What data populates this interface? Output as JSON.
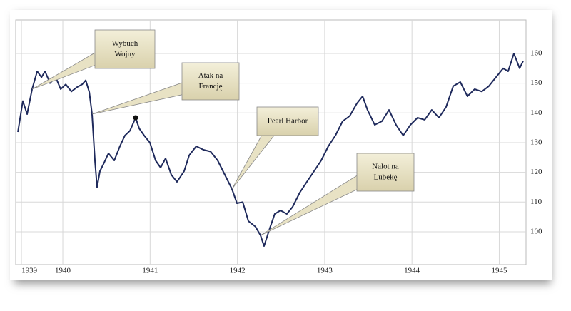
{
  "chart_data": {
    "type": "line",
    "x": [
      1939.485,
      1939.542,
      1939.591,
      1939.648,
      1939.706,
      1939.755,
      1939.796,
      1939.853,
      1939.918,
      1939.975,
      1940.033,
      1940.098,
      1940.164,
      1940.221,
      1940.262,
      1940.303,
      1940.335,
      1940.368,
      1940.392,
      1940.425,
      1940.466,
      1940.523,
      1940.589,
      1940.654,
      1940.711,
      1940.769,
      1940.834,
      1940.875,
      1940.932,
      1940.998,
      1941.063,
      1941.12,
      1941.177,
      1941.243,
      1941.308,
      1941.39,
      1941.447,
      1941.529,
      1941.611,
      1941.693,
      1941.774,
      1941.856,
      1941.938,
      1941.995,
      1942.061,
      1942.126,
      1942.208,
      1942.265,
      1942.306,
      1942.371,
      1942.428,
      1942.494,
      1942.567,
      1942.633,
      1942.715,
      1942.796,
      1942.878,
      1942.96,
      1943.042,
      1943.123,
      1943.205,
      1943.287,
      1943.369,
      1943.434,
      1943.491,
      1943.573,
      1943.655,
      1943.737,
      1943.818,
      1943.9,
      1943.982,
      1944.064,
      1944.146,
      1944.227,
      1944.309,
      1944.391,
      1944.473,
      1944.554,
      1944.636,
      1944.718,
      1944.8,
      1944.881,
      1944.963,
      1945.045,
      1945.102,
      1945.168,
      1945.233,
      1945.274
    ],
    "values": [
      133.6,
      144,
      139.6,
      148,
      154,
      152,
      154,
      150,
      152,
      148,
      149.6,
      147.2,
      148.7,
      149.6,
      151,
      147,
      139.6,
      124,
      115,
      120.4,
      122.8,
      126.4,
      124,
      128.8,
      132.4,
      134,
      138.4,
      134.8,
      132.4,
      130,
      124,
      121.6,
      124.7,
      119.2,
      116.8,
      120.4,
      125.7,
      128.8,
      127.6,
      127,
      124,
      119.2,
      114.4,
      109.6,
      110,
      103.6,
      101.7,
      98.8,
      95.2,
      101.2,
      106,
      107.2,
      106,
      108.4,
      113.2,
      116.8,
      120.4,
      124,
      128.8,
      132.4,
      137.2,
      139,
      143.2,
      145.6,
      141,
      136,
      137.2,
      141,
      136,
      132.4,
      136,
      138.4,
      137.7,
      141,
      138.4,
      142,
      149,
      150.4,
      145.6,
      148,
      147.2,
      149,
      152,
      155,
      154,
      160,
      155,
      157.5
    ],
    "color": "#1f2a5c",
    "xlim": [
      1939.46,
      1945.307
    ],
    "xticks": [
      {
        "value": 1939.526,
        "label": "1939"
      },
      1940,
      1941,
      1942,
      1943,
      1944,
      1945
    ],
    "ylim": [
      89,
      170
    ],
    "yticks": [
      100,
      110,
      120,
      130,
      140,
      150,
      160
    ],
    "grid": true,
    "annotations": [
      {
        "lines": [
          "Wybuch",
          "Wojny"
        ]
      },
      {
        "lines": [
          "Atak na",
          "Francję"
        ]
      },
      {
        "lines": [
          "Pearl Harbor"
        ]
      },
      {
        "lines": [
          "Nalot na",
          "Lubekę"
        ]
      }
    ]
  }
}
